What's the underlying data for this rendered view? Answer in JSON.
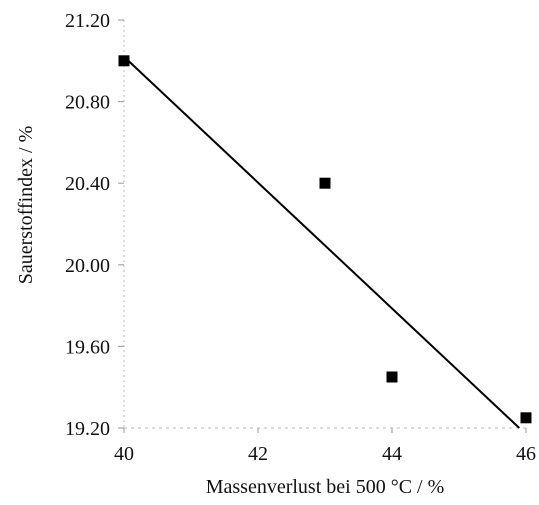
{
  "chart_data": {
    "type": "scatter",
    "title": "",
    "xlabel": "Massenverlust bei 500 °C / %",
    "ylabel": "Sauerstoffindex / %",
    "xlim": [
      40,
      46
    ],
    "ylim": [
      19.2,
      21.2
    ],
    "x_ticks": [
      "40",
      "42",
      "44",
      "46"
    ],
    "x_tick_values": [
      40,
      42,
      44,
      46
    ],
    "y_ticks": [
      "19.20",
      "19.60",
      "20.00",
      "20.40",
      "20.80",
      "21.20"
    ],
    "y_tick_values": [
      19.2,
      19.6,
      20.0,
      20.4,
      20.8,
      21.2
    ],
    "points": [
      {
        "x": 40.0,
        "y": 21.0
      },
      {
        "x": 43.0,
        "y": 20.4
      },
      {
        "x": 44.0,
        "y": 19.45
      },
      {
        "x": 46.0,
        "y": 19.25
      }
    ],
    "trendline": {
      "x": [
        40.0,
        45.9
      ],
      "y": [
        21.02,
        19.2
      ]
    },
    "grid": false,
    "legend": "none",
    "marker_color": "#000000",
    "line_color": "#000000"
  }
}
